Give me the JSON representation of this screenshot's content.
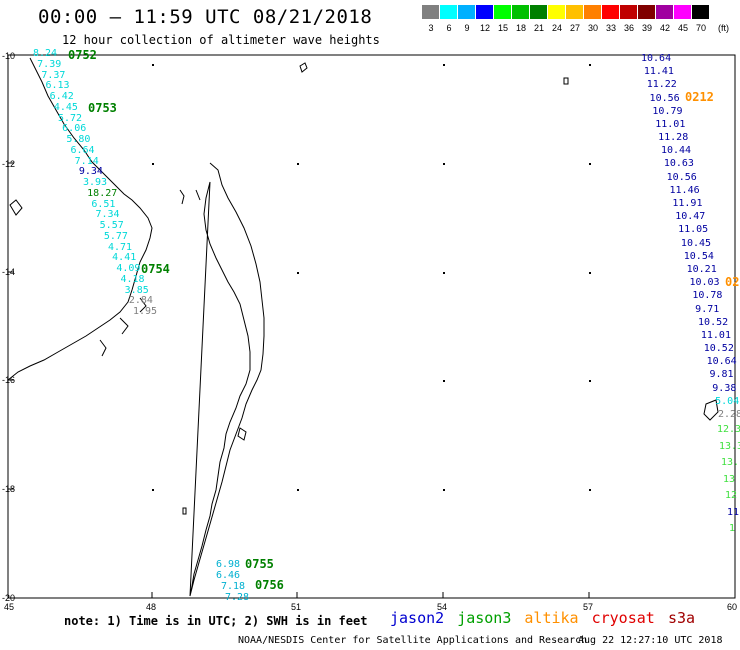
{
  "header": {
    "title": "00:00 – 11:59 UTC 08/21/2018",
    "subtitle": "12 hour collection of altimeter wave heights"
  },
  "legend": {
    "swatches": [
      {
        "label": "3",
        "color": "#808080"
      },
      {
        "label": "6",
        "color": "#00ffff"
      },
      {
        "label": "9",
        "color": "#00b0ff"
      },
      {
        "label": "12",
        "color": "#0000ff"
      },
      {
        "label": "15",
        "color": "#00ff00"
      },
      {
        "label": "18",
        "color": "#00c000"
      },
      {
        "label": "21",
        "color": "#008000"
      },
      {
        "label": "24",
        "color": "#ffff00"
      },
      {
        "label": "27",
        "color": "#ffc000"
      },
      {
        "label": "30",
        "color": "#ff8000"
      },
      {
        "label": "33",
        "color": "#ff0000"
      },
      {
        "label": "36",
        "color": "#c00000"
      },
      {
        "label": "39",
        "color": "#800000"
      },
      {
        "label": "42",
        "color": "#a000a0"
      },
      {
        "label": "45",
        "color": "#ff00ff"
      },
      {
        "label": "70",
        "color": "#000000"
      }
    ],
    "unit": "(ft)"
  },
  "axes": {
    "lat_labels": [
      "-10",
      "-12",
      "-14",
      "-16",
      "-18",
      "-20"
    ],
    "lon_labels": [
      "45",
      "48",
      "51",
      "54",
      "57",
      "60"
    ]
  },
  "tracks": {
    "west": [
      {
        "t": "8.24",
        "c": "#00d8d8"
      },
      {
        "t": "7.39",
        "c": "#00d8d8"
      },
      {
        "t": "7.37",
        "c": "#00d8d8"
      },
      {
        "t": "6.13",
        "c": "#00d8d8"
      },
      {
        "t": "6.42",
        "c": "#00d8d8"
      },
      {
        "t": "4.45",
        "c": "#00d8d8"
      },
      {
        "t": "5.72",
        "c": "#00d8d8"
      },
      {
        "t": "6.06",
        "c": "#00d8d8"
      },
      {
        "t": "5.80",
        "c": "#00d8d8"
      },
      {
        "t": "6.64",
        "c": "#00d8d8"
      },
      {
        "t": "7.14",
        "c": "#00d8d8"
      },
      {
        "t": "9.34",
        "c": "#0000a0"
      },
      {
        "t": "3.93",
        "c": "#00d8d8"
      },
      {
        "t": "18.27",
        "c": "#008000"
      },
      {
        "t": "6.51",
        "c": "#00d8d8"
      },
      {
        "t": "7.34",
        "c": "#00d8d8"
      },
      {
        "t": "5.57",
        "c": "#00d8d8"
      },
      {
        "t": "5.77",
        "c": "#00d8d8"
      },
      {
        "t": "4.71",
        "c": "#00d8d8"
      },
      {
        "t": "4.41",
        "c": "#00d8d8"
      },
      {
        "t": "4.09",
        "c": "#00d8d8"
      },
      {
        "t": "4.18",
        "c": "#00d8d8"
      },
      {
        "t": "3.85",
        "c": "#00d8d8"
      },
      {
        "t": "2.84",
        "c": "#808080"
      },
      {
        "t": "1.95",
        "c": "#808080"
      }
    ],
    "south": [
      {
        "t": "6.98",
        "c": "#00b0d0"
      },
      {
        "t": "6.46",
        "c": "#00b0d0"
      },
      {
        "t": "7.18",
        "c": "#00b0d0"
      },
      {
        "t": "7.28",
        "c": "#00b0d0"
      }
    ],
    "east": [
      {
        "t": "10.64",
        "c": "#0000a0"
      },
      {
        "t": "11.41",
        "c": "#0000a0"
      },
      {
        "t": "11.22",
        "c": "#0000a0"
      },
      {
        "t": "10.56",
        "c": "#0000a0"
      },
      {
        "t": "10.79",
        "c": "#0000a0"
      },
      {
        "t": "11.01",
        "c": "#0000a0"
      },
      {
        "t": "11.28",
        "c": "#0000a0"
      },
      {
        "t": "10.44",
        "c": "#0000a0"
      },
      {
        "t": "10.63",
        "c": "#0000a0"
      },
      {
        "t": "10.56",
        "c": "#0000a0"
      },
      {
        "t": "11.46",
        "c": "#0000a0"
      },
      {
        "t": "11.91",
        "c": "#0000a0"
      },
      {
        "t": "10.47",
        "c": "#0000a0"
      },
      {
        "t": "11.05",
        "c": "#0000a0"
      },
      {
        "t": "10.45",
        "c": "#0000a0"
      },
      {
        "t": "10.54",
        "c": "#0000a0"
      },
      {
        "t": "10.21",
        "c": "#0000a0"
      },
      {
        "t": "10.03",
        "c": "#0000a0"
      },
      {
        "t": "10.78",
        "c": "#0000a0"
      },
      {
        "t": "9.71",
        "c": "#0000a0"
      },
      {
        "t": "10.52",
        "c": "#0000a0"
      },
      {
        "t": "11.01",
        "c": "#0000a0"
      },
      {
        "t": "10.52",
        "c": "#0000a0"
      },
      {
        "t": "10.64",
        "c": "#0000a0"
      },
      {
        "t": "9.81",
        "c": "#0000a0"
      },
      {
        "t": "9.38",
        "c": "#0000a0"
      },
      {
        "t": "5.04",
        "c": "#00d8d8"
      },
      {
        "t": "2.28",
        "c": "#808080"
      }
    ],
    "east_edge": [
      {
        "t": "12.3",
        "c": "#40e040"
      },
      {
        "t": "13.3",
        "c": "#40e040"
      },
      {
        "t": "13.",
        "c": "#40e040"
      },
      {
        "t": "13",
        "c": "#40e040"
      },
      {
        "t": "12",
        "c": "#40e040"
      },
      {
        "t": "11",
        "c": "#0000a0"
      },
      {
        "t": "1",
        "c": "#40e040"
      }
    ],
    "time_labels": [
      {
        "t": "0752",
        "c": "#008000"
      },
      {
        "t": "0753",
        "c": "#008000"
      },
      {
        "t": "0754",
        "c": "#008000"
      },
      {
        "t": "0755",
        "c": "#008000"
      },
      {
        "t": "0756",
        "c": "#008000"
      },
      {
        "t": "0212",
        "c": "#ff9000"
      },
      {
        "t": "02",
        "c": "#ff9000"
      }
    ]
  },
  "footer": {
    "note": "note: 1) Time is in UTC; 2) SWH is in feet",
    "satellites": [
      {
        "name": "jason2",
        "color": "#0000d0"
      },
      {
        "name": "jason3",
        "color": "#00a000"
      },
      {
        "name": "altika",
        "color": "#ff9000"
      },
      {
        "name": "cryosat",
        "color": "#e00000"
      },
      {
        "name": "s3a",
        "color": "#a00000"
      }
    ],
    "credit": "NOAA/NESDIS Center for Satellite Applications and Research",
    "timestamp": "Aug 22 12:27:10 UTC 2018"
  }
}
